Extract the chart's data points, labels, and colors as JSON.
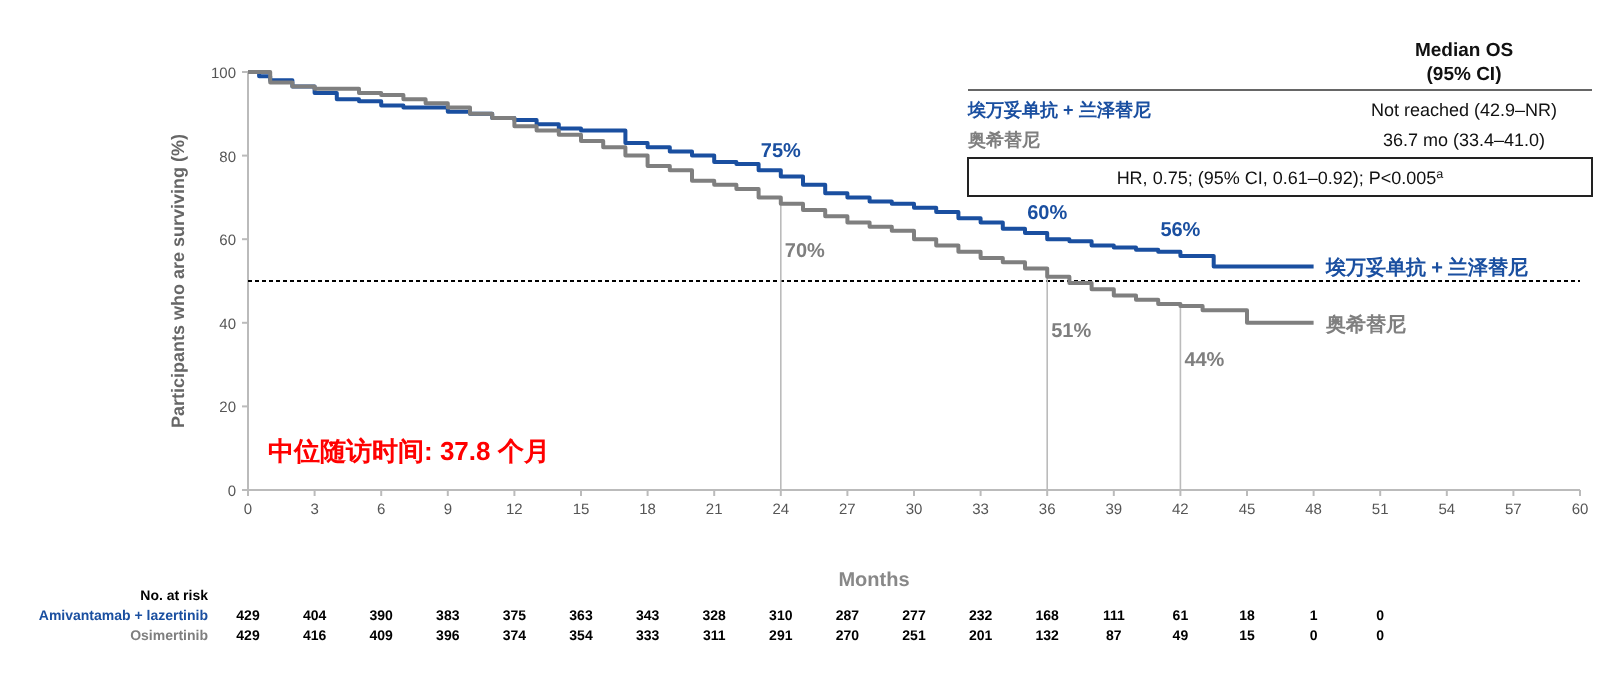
{
  "chart_data": {
    "type": "step",
    "xlabel": "Months",
    "ylabel": "Participants who are surviving (%)",
    "xlim": [
      0,
      60
    ],
    "ylim": [
      0,
      100
    ],
    "xticks": [
      0,
      3,
      6,
      9,
      12,
      15,
      18,
      21,
      24,
      27,
      30,
      33,
      36,
      39,
      42,
      45,
      48,
      51,
      54,
      57,
      60
    ],
    "yticks": [
      0,
      20,
      40,
      60,
      80,
      100
    ],
    "grid": false,
    "legend": false,
    "series": [
      {
        "name": "埃万妥单抗 + 兰泽替尼",
        "color": "#1a4fa0",
        "x": [
          0,
          0.5,
          1,
          2,
          3,
          4,
          5,
          6,
          7,
          9,
          10,
          11,
          12,
          13,
          14,
          15,
          16,
          17,
          18,
          19,
          20,
          21,
          22,
          23,
          24,
          25,
          26,
          27,
          28,
          29,
          30,
          31,
          32,
          33,
          34,
          35,
          36,
          37,
          38,
          39,
          40,
          41,
          42,
          43,
          43.5,
          48
        ],
        "values": [
          100,
          99,
          98,
          96.5,
          95,
          93.5,
          93,
          92,
          91.5,
          90.5,
          90,
          89,
          88.5,
          87.5,
          86.5,
          86,
          86,
          83,
          82,
          81,
          80,
          78.5,
          78,
          76.5,
          75,
          73,
          71,
          70,
          69,
          68.5,
          67.5,
          66.5,
          65,
          64,
          62.5,
          61.5,
          60,
          59.5,
          58.5,
          58,
          57.5,
          57,
          56,
          56,
          53.5,
          53.5
        ]
      },
      {
        "name": "奥希替尼",
        "color": "#7f7f7f",
        "x": [
          0,
          1,
          2,
          3,
          5,
          6,
          7,
          8,
          9,
          10,
          11,
          12,
          13,
          14,
          15,
          16,
          17,
          18,
          19,
          20,
          21,
          22,
          23,
          24,
          25,
          26,
          27,
          28,
          29,
          30,
          31,
          32,
          33,
          34,
          35,
          36,
          37,
          38,
          39,
          40,
          41,
          42,
          43,
          45,
          48
        ],
        "values": [
          100,
          97.5,
          96.5,
          96,
          95,
          94.5,
          93.5,
          92.5,
          91.5,
          90,
          89,
          87,
          86,
          85,
          83.5,
          82,
          80,
          77.5,
          76.5,
          74,
          73,
          72,
          70,
          68.5,
          67,
          65.5,
          64,
          63,
          62,
          60,
          58.5,
          57,
          55.5,
          54.5,
          53,
          51,
          49.5,
          48,
          46.5,
          45.5,
          44.5,
          44,
          43,
          40,
          40
        ]
      }
    ],
    "ref_lines": [
      {
        "axis": "y",
        "value": 50,
        "color": "#000000",
        "line_style": "dotted"
      },
      {
        "axis": "x",
        "value": 24,
        "color": "#bbbbbb",
        "line_style": "solid"
      },
      {
        "axis": "x",
        "value": 36,
        "color": "#bbbbbb",
        "line_style": "solid"
      },
      {
        "axis": "x",
        "value": 42,
        "color": "#bbbbbb",
        "line_style": "solid"
      }
    ],
    "annotations": [
      "中位随访时间: 37.8 个月",
      "Median OS",
      "(95% CI)",
      "Not reached (42.9–NR)",
      "36.7 mo (33.4–41.0)",
      "HR, 0.75; (95% CI, 0.61–0.92); P<0.005$^{a}$",
      "No. at risk",
      "Amivantamab + lazertinib",
      "Osimertinib",
      "429 404 390 383 375 363 343 328 310 287 277 232 168 111 61 18 1 0",
      "429 416 409 396 374 354 333 311 291 270 251 201 132 87 49 15 0 0",
      {
        "text": "75%",
        "x": 24,
        "y": 75
      },
      {
        "text": "70%",
        "x": 24,
        "y": 70
      },
      {
        "text": "60%",
        "x": 36,
        "y": 60
      },
      {
        "text": "51%",
        "x": 36,
        "y": 51
      },
      {
        "text": "56%",
        "x": 42,
        "y": 56
      },
      {
        "text": "44%",
        "x": 42,
        "y": 44
      }
    ]
  }
}
